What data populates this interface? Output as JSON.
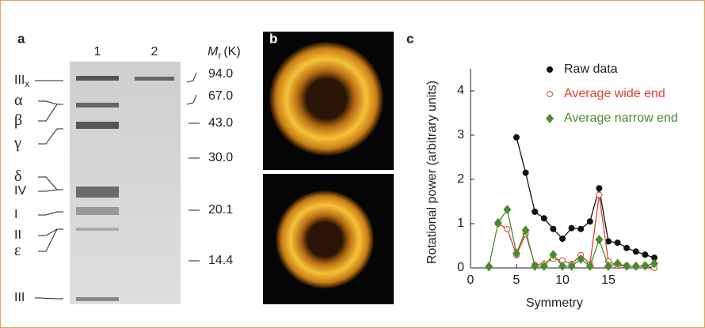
{
  "panel_a": {
    "label": "a",
    "lanes": [
      "1",
      "2"
    ],
    "mr": {
      "symbol": "M",
      "subscript": "r",
      "unit": "(K)"
    },
    "markers": [
      "94.0",
      "67.0",
      "43.0",
      "30.0",
      "20.1",
      "14.4"
    ],
    "subunits": [
      {
        "name": "III",
        "sub": "x"
      },
      {
        "name": "α"
      },
      {
        "name": "β"
      },
      {
        "name": "γ"
      },
      {
        "name": "δ"
      },
      {
        "name": "IV"
      },
      {
        "name": "I"
      },
      {
        "name": "II"
      },
      {
        "name": "ε"
      },
      {
        "name": "III"
      }
    ]
  },
  "panel_b": {
    "label": "b"
  },
  "chart_data": {
    "type": "line",
    "label": "c",
    "x_label": "Symmetry",
    "y_label": "Rotational power (arbitrary units)",
    "xlim": [
      0,
      20
    ],
    "xticks": [
      0,
      5,
      10,
      15
    ],
    "ylim": [
      0,
      4.5
    ],
    "yticks": [
      0,
      1,
      2,
      3,
      4
    ],
    "legend": "upper right",
    "series": [
      {
        "name": "Raw data",
        "color": "#111111",
        "marker": "filled-circle",
        "x": [
          5,
          6,
          7,
          8,
          9,
          10,
          11,
          12,
          13,
          14,
          15,
          16,
          17,
          18,
          19,
          20
        ],
        "values": [
          2.95,
          2.15,
          1.27,
          1.12,
          0.88,
          0.66,
          0.9,
          0.88,
          1.05,
          1.8,
          0.6,
          0.57,
          0.45,
          0.37,
          0.3,
          0.23
        ]
      },
      {
        "name": "Average wide end",
        "color": "#d9442a",
        "marker": "open-circle",
        "x": [
          3,
          4,
          5,
          6,
          7,
          8,
          9,
          10,
          11,
          12,
          13,
          14,
          15,
          16,
          17,
          18,
          19,
          20
        ],
        "values": [
          1.0,
          0.88,
          0.29,
          0.77,
          0.07,
          0.1,
          0.21,
          0.17,
          0.09,
          0.29,
          0.09,
          1.65,
          0.15,
          0.05,
          0.05,
          0.03,
          0.05,
          0
        ]
      },
      {
        "name": "Average narrow end",
        "color": "#4a8a2e",
        "marker": "diamond",
        "x": [
          2,
          3,
          4,
          5,
          6,
          7,
          8,
          9,
          10,
          11,
          12,
          13,
          14,
          15,
          16,
          17,
          18,
          19,
          20
        ],
        "values": [
          0.03,
          1.02,
          1.32,
          0.33,
          0.85,
          0.04,
          0.04,
          0.3,
          0.04,
          0.04,
          0.2,
          0.04,
          0.64,
          0.04,
          0.1,
          0.04,
          0.04,
          0.05,
          0.1
        ]
      }
    ]
  }
}
